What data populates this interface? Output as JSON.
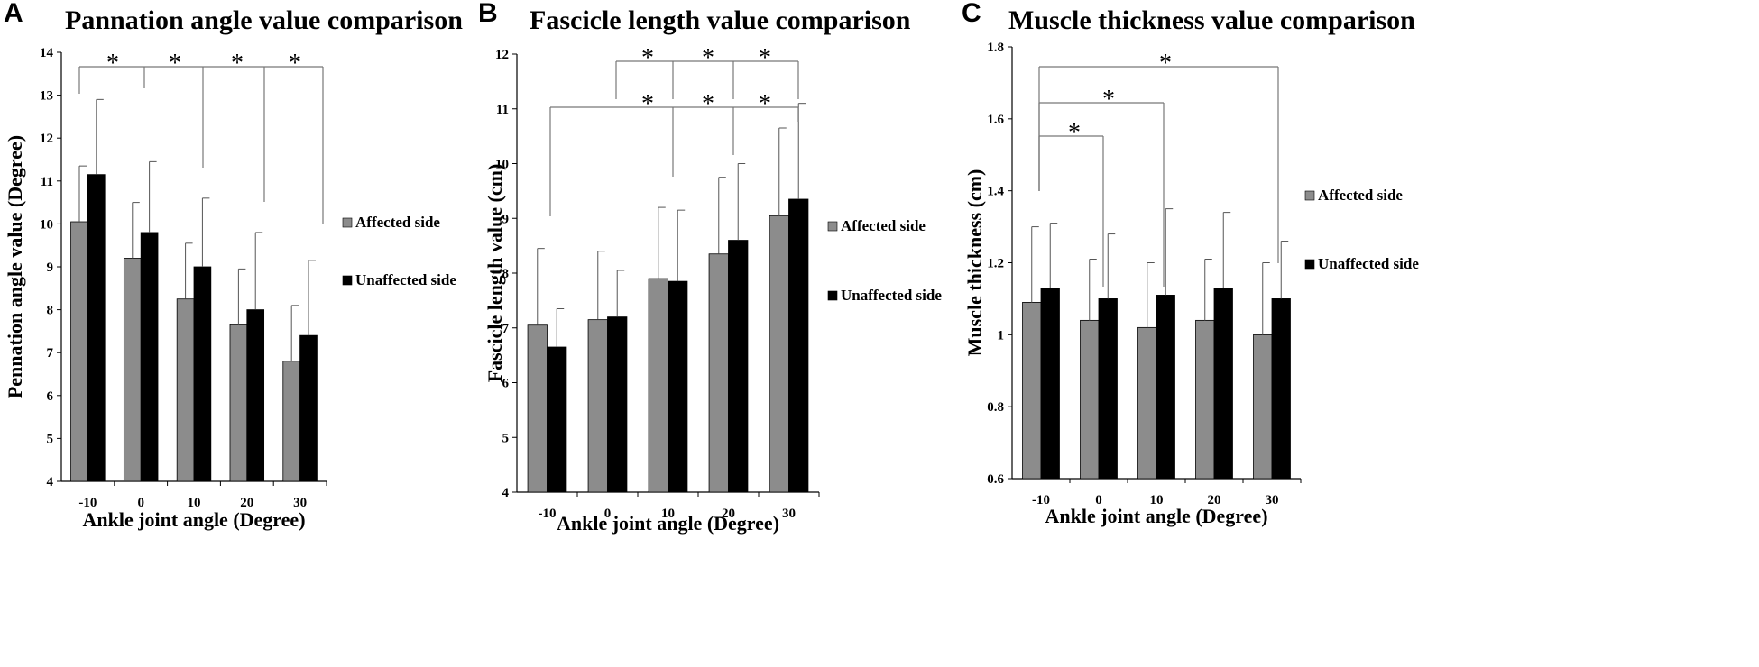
{
  "chart_data": [
    {
      "panel": "A",
      "type": "bar",
      "title": "Pannation angle value comparison",
      "xlabel": "Ankle joint angle (Degree)",
      "ylabel": "Pennation angle value (Degree)",
      "ylim": [
        4,
        14
      ],
      "yticks": [
        "4",
        "5",
        "6",
        "7",
        "8",
        "9",
        "10",
        "11",
        "12",
        "13",
        "14"
      ],
      "categories": [
        "-10",
        "0",
        "10",
        "20",
        "30"
      ],
      "series": [
        {
          "name": "Affected side",
          "color": "#8c8c8c",
          "values": [
            10.05,
            9.2,
            8.25,
            7.65,
            6.8
          ],
          "errors": [
            1.3,
            1.3,
            1.3,
            1.3,
            1.3
          ]
        },
        {
          "name": "Unaffected side",
          "color": "#000000",
          "values": [
            11.15,
            9.8,
            9.0,
            8.0,
            7.4
          ],
          "errors": [
            1.75,
            1.65,
            1.6,
            1.8,
            1.75
          ]
        }
      ],
      "significance": [
        "*",
        "*",
        "*",
        "*"
      ]
    },
    {
      "panel": "B",
      "type": "bar",
      "title": "Fascicle length value comparison",
      "xlabel": "Ankle joint angle (Degree)",
      "ylabel": "Fascicle length value (cm)",
      "ylim": [
        4,
        12
      ],
      "yticks": [
        "4",
        "5",
        "6",
        "7",
        "8",
        "9",
        "10",
        "11",
        "12"
      ],
      "categories": [
        "-10",
        "0",
        "10",
        "20",
        "30"
      ],
      "series": [
        {
          "name": "Affected side",
          "color": "#8c8c8c",
          "values": [
            7.05,
            7.15,
            7.9,
            8.35,
            9.05
          ],
          "errors": [
            1.4,
            1.25,
            1.3,
            1.4,
            1.6
          ]
        },
        {
          "name": "Unaffected side",
          "color": "#000000",
          "values": [
            6.65,
            7.2,
            7.85,
            8.6,
            9.35
          ],
          "errors": [
            0.7,
            0.85,
            1.3,
            1.4,
            1.75
          ]
        }
      ],
      "significance": [
        "*",
        "*",
        "*",
        "*",
        "*",
        "*"
      ]
    },
    {
      "panel": "C",
      "type": "bar",
      "title": "Muscle thickness value comparison",
      "xlabel": "Ankle joint angle (Degree)",
      "ylabel": "Muscle  thickness (cm)",
      "ylim": [
        0.6,
        1.8
      ],
      "yticks": [
        "0.6",
        "0.8",
        "1",
        "1.2",
        "1.4",
        "1.6",
        "1.8"
      ],
      "categories": [
        "-10",
        "0",
        "10",
        "20",
        "30"
      ],
      "series": [
        {
          "name": "Affected side",
          "color": "#8c8c8c",
          "values": [
            1.09,
            1.04,
            1.02,
            1.04,
            1.0
          ],
          "errors": [
            0.21,
            0.17,
            0.18,
            0.17,
            0.2
          ]
        },
        {
          "name": "Unaffected side",
          "color": "#000000",
          "values": [
            1.13,
            1.1,
            1.11,
            1.13,
            1.1
          ],
          "errors": [
            0.18,
            0.18,
            0.24,
            0.21,
            0.16
          ]
        }
      ],
      "significance": [
        "*",
        "*",
        "*"
      ]
    }
  ]
}
